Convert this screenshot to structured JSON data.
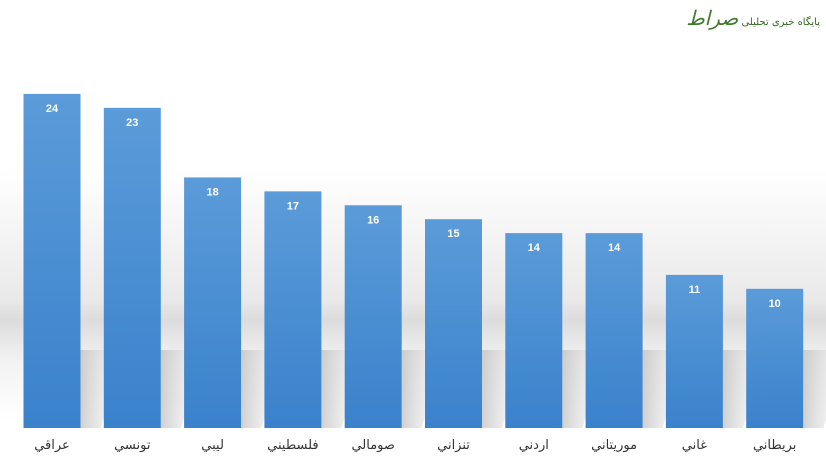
{
  "chart_data": {
    "type": "bar",
    "categories": [
      "عراقي",
      "تونسي",
      "ليبي",
      "فلسطيني",
      "صومالي",
      "تنزاني",
      "اردني",
      "موريتاني",
      "غاني",
      "بريطاني"
    ],
    "values": [
      24,
      23,
      18,
      17,
      16,
      15,
      14,
      14,
      11,
      10
    ],
    "data_labels": true,
    "grid": false,
    "legend": "none",
    "bar_color": "#4a8fd6"
  },
  "watermark": {
    "logo_text": "صراط",
    "tagline": "پایگاه خبری تحلیلی"
  }
}
